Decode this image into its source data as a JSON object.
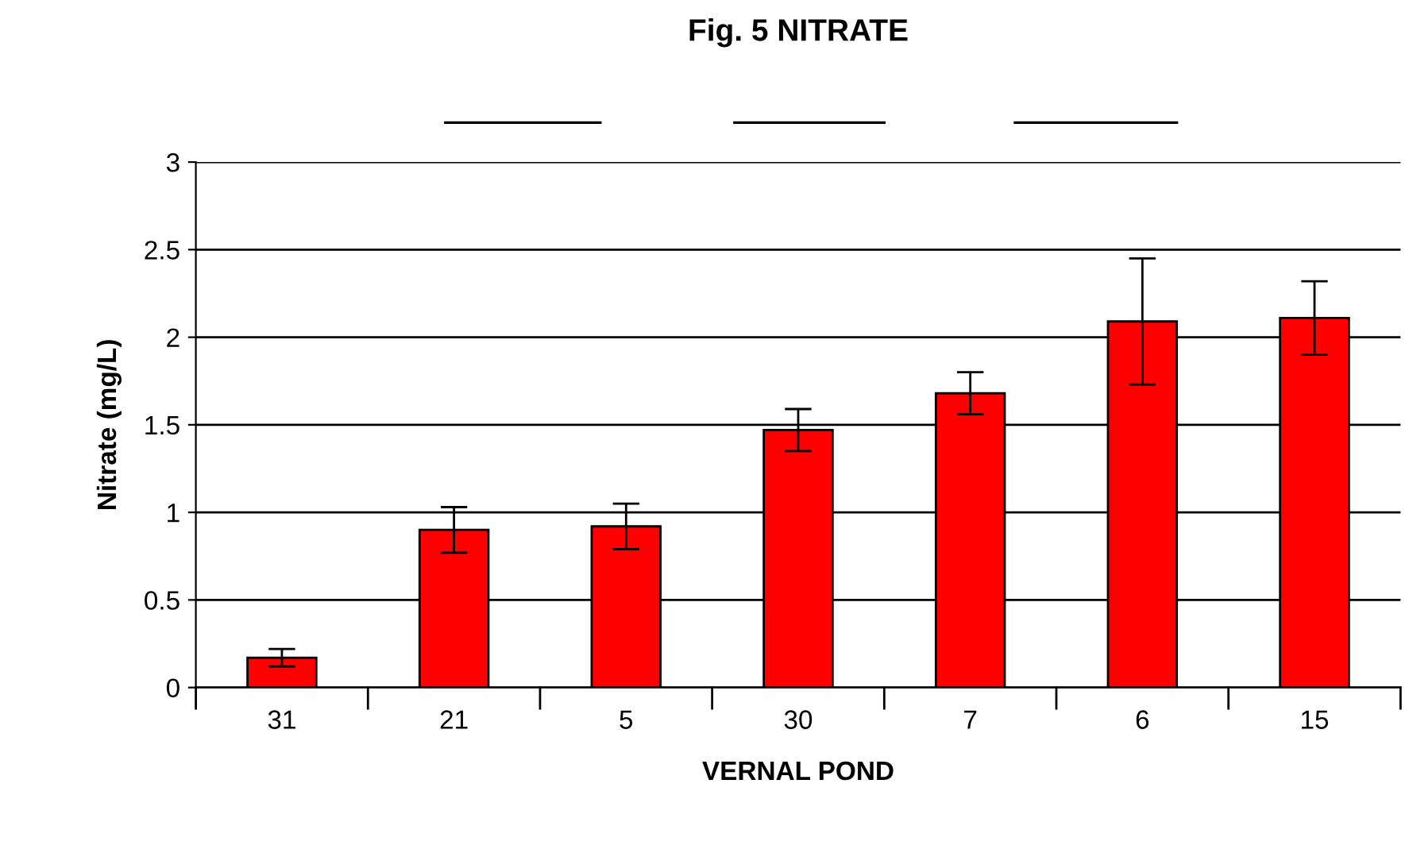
{
  "chart_data": {
    "type": "bar",
    "title": "Fig. 5 NITRATE",
    "xlabel": "VERNAL POND",
    "ylabel": "Nitrate (mg/L)",
    "categories": [
      "31",
      "21",
      "5",
      "30",
      "7",
      "6",
      "15"
    ],
    "values": [
      0.17,
      0.9,
      0.92,
      1.47,
      1.68,
      2.09,
      2.11
    ],
    "errors": [
      0.05,
      0.13,
      0.13,
      0.12,
      0.12,
      0.36,
      0.21
    ],
    "color": "#ff0000",
    "ylim": [
      0,
      3
    ],
    "yticks": [
      0,
      0.5,
      1,
      1.5,
      2,
      2.5,
      3
    ],
    "grid": "y"
  }
}
